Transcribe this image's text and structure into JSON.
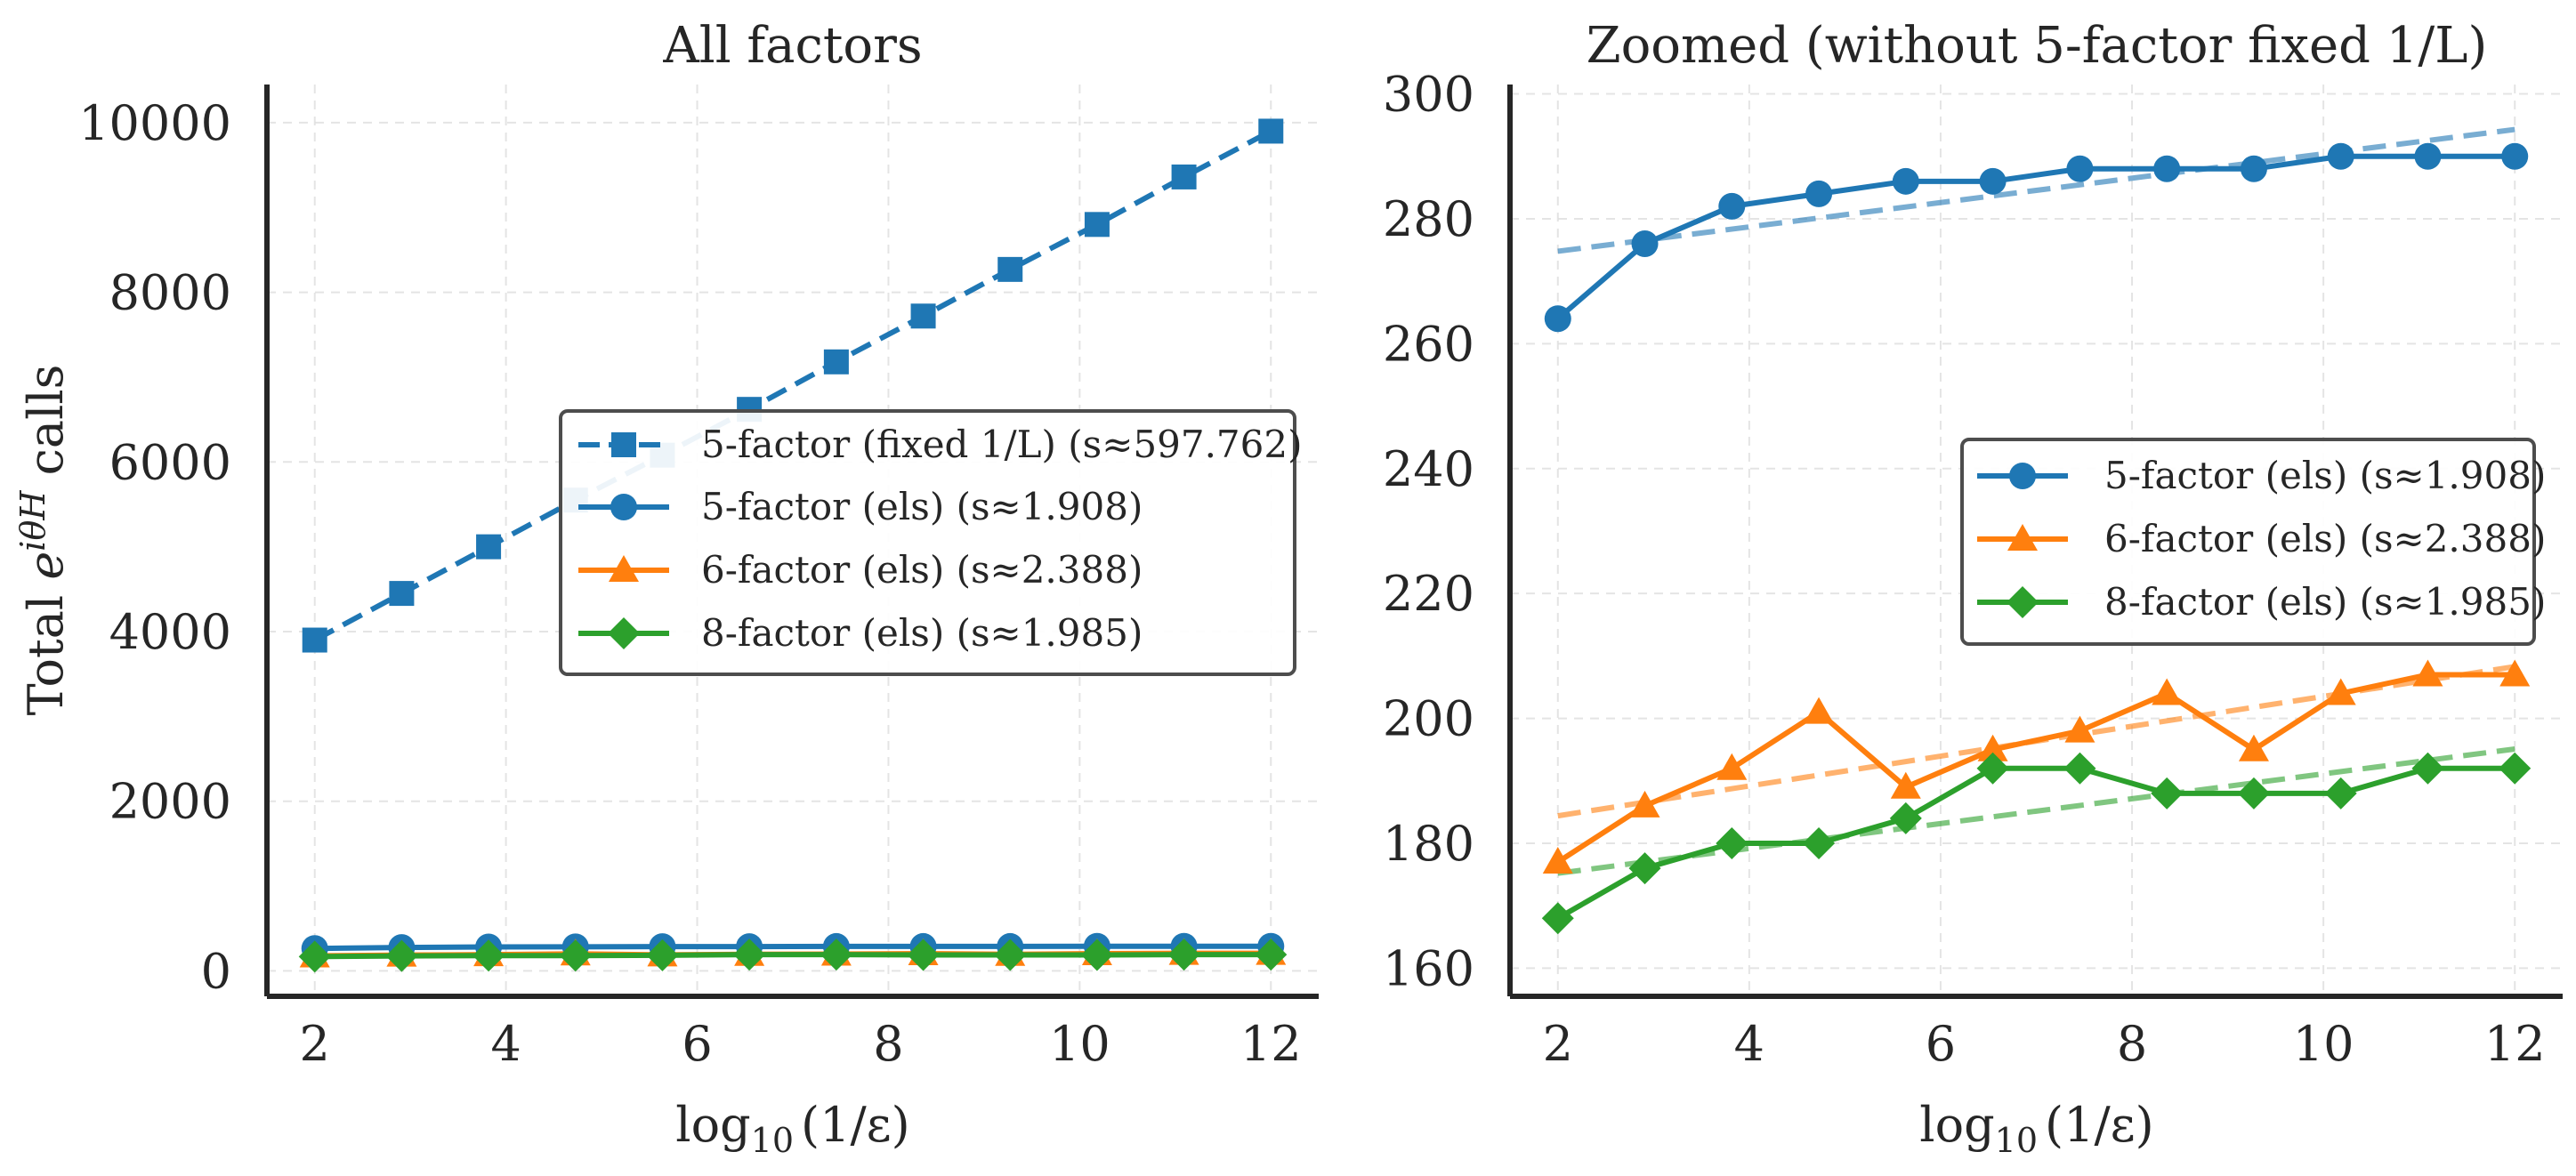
{
  "colors": {
    "blue": "#1f77b4",
    "orange": "#ff7f0e",
    "green": "#2ca02c",
    "axis": "#262626",
    "grid": "#dddddd",
    "legend_edge": "#4d4d4d"
  },
  "shared": {
    "ylabel_prefix": "Total ",
    "ylabel_exp_base": "e",
    "ylabel_exp_sup": "iθH",
    "ylabel_suffix": " calls",
    "xlabel_prefix": "log",
    "xlabel_sub": "10",
    "xlabel_suffix": "(1/ε)"
  },
  "chart_data": [
    {
      "type": "line",
      "title": "All factors",
      "xlabel": "log10(1/ε)",
      "ylabel": "Total e^{iθH} calls",
      "xlim": [
        1.5,
        12.5
      ],
      "ylim": [
        -300,
        10450
      ],
      "xticks": [
        2,
        4,
        6,
        8,
        10,
        12
      ],
      "yticks": [
        0,
        2000,
        4000,
        6000,
        8000,
        10000
      ],
      "grid": true,
      "legend_position": "center-right",
      "x": [
        2,
        2.909,
        3.818,
        4.727,
        5.636,
        6.545,
        7.455,
        8.364,
        9.273,
        10.182,
        11.091,
        12
      ],
      "series": [
        {
          "name": "5-factor (fixed 1/L) (s≈597.762)",
          "color": "#1f77b4",
          "marker": "square",
          "dashed": true,
          "values": [
            3900,
            4450,
            5000,
            5550,
            6080,
            6620,
            7180,
            7720,
            8270,
            8800,
            9360,
            9900
          ]
        },
        {
          "name": "5-factor (els) (s≈1.908)",
          "color": "#1f77b4",
          "marker": "circle",
          "dashed": false,
          "values": [
            264,
            276,
            282,
            284,
            286,
            286,
            288,
            288,
            288,
            290,
            290,
            290
          ]
        },
        {
          "name": "6-factor (els) (s≈2.388)",
          "color": "#ff7f0e",
          "marker": "triangle",
          "dashed": false,
          "values": [
            177,
            186,
            192,
            201,
            189,
            195,
            198,
            204,
            195,
            204,
            207,
            207
          ]
        },
        {
          "name": "8-factor (els) (s≈1.985)",
          "color": "#2ca02c",
          "marker": "diamond",
          "dashed": false,
          "values": [
            168,
            176,
            180,
            180,
            184,
            192,
            192,
            188,
            188,
            188,
            192,
            192
          ]
        }
      ]
    },
    {
      "type": "line",
      "title": "Zoomed (without 5-factor fixed 1/L)",
      "xlabel": "log10(1/ε)",
      "xlim": [
        1.5,
        12.5
      ],
      "ylim": [
        155.5,
        301.5
      ],
      "xticks": [
        2,
        4,
        6,
        8,
        10,
        12
      ],
      "yticks": [
        160,
        180,
        200,
        220,
        240,
        260,
        280,
        300
      ],
      "grid": true,
      "legend_position": "center-right",
      "x": [
        2,
        2.909,
        3.818,
        4.727,
        5.636,
        6.545,
        7.455,
        8.364,
        9.273,
        10.182,
        11.091,
        12
      ],
      "series": [
        {
          "name": "5-factor (els) (s≈1.908)",
          "color": "#1f77b4",
          "marker": "circle",
          "values": [
            264,
            276,
            282,
            284,
            286,
            286,
            288,
            288,
            288,
            290,
            290,
            290
          ],
          "fit": [
            274.8,
            294.3
          ]
        },
        {
          "name": "6-factor (els) (s≈2.388)",
          "color": "#ff7f0e",
          "marker": "triangle",
          "values": [
            177,
            186,
            192,
            201,
            189,
            195,
            198,
            204,
            195,
            204,
            207,
            207
          ],
          "fit": [
            184.4,
            208.3
          ]
        },
        {
          "name": "8-factor (els) (s≈1.985)",
          "color": "#2ca02c",
          "marker": "diamond",
          "values": [
            168,
            176,
            180,
            180,
            184,
            192,
            192,
            188,
            188,
            188,
            192,
            192
          ],
          "fit": [
            175.2,
            195.1
          ]
        }
      ]
    }
  ]
}
